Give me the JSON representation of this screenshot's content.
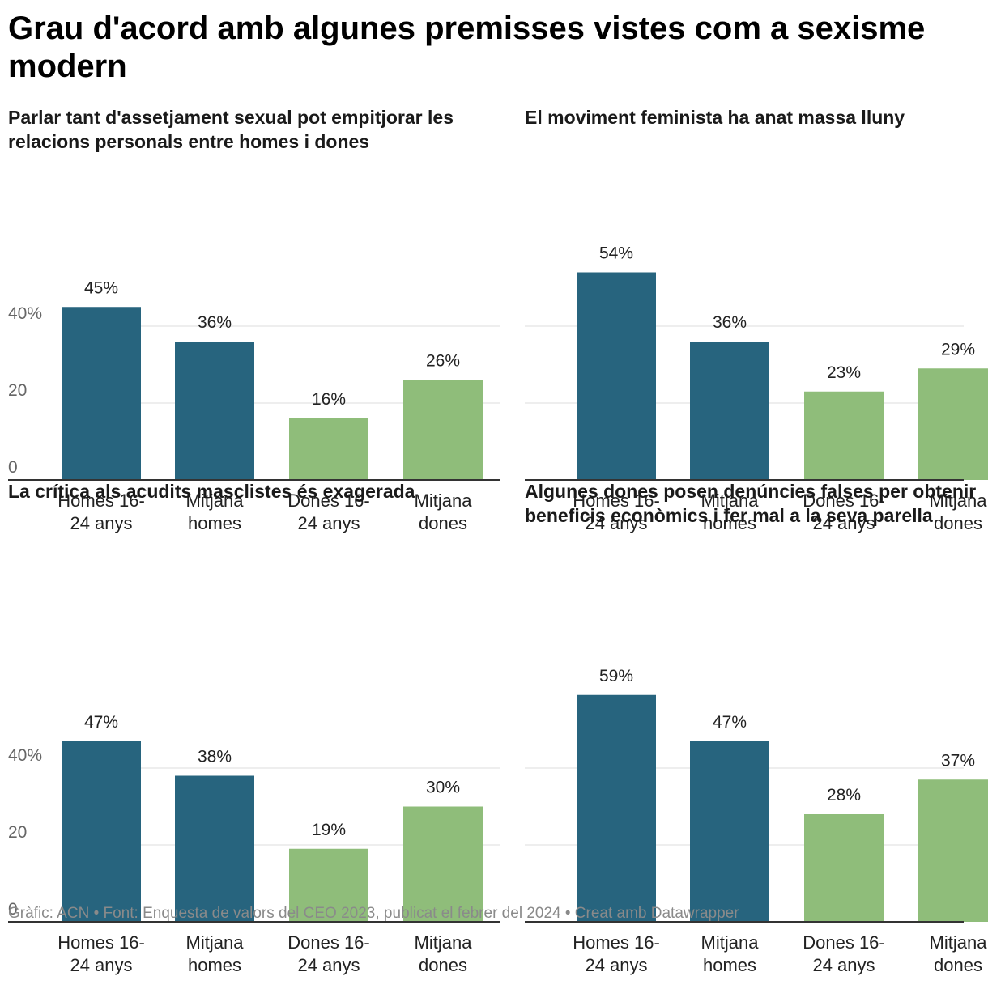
{
  "title": "Grau d'acord amb algunes premisses vistes com a sexisme modern",
  "footer": "Gràfic: ACN • Font: Enquesta de valors del CEO 2023, publicat el febrer del 2024 • Creat amb Datawrapper",
  "colors": {
    "homes": "#27647e",
    "dones": "#8fbd7a",
    "grid": "#dddddd",
    "axis": "#333333",
    "tick_text": "#666666"
  },
  "chart_data": [
    {
      "type": "bar",
      "title": "Parlar tant d'assetjament sexual pot empitjorar les relacions personals entre homes i dones",
      "categories": [
        "Homes 16-24 anys",
        "Mitjana homes",
        "Dones 16-24 anys",
        "Mitjana dones"
      ],
      "category_lines": [
        [
          "Homes 16-",
          "24 anys"
        ],
        [
          "Mitjana",
          "homes"
        ],
        [
          "Dones 16-",
          "24 anys"
        ],
        [
          "Mitjana",
          "dones"
        ]
      ],
      "values": [
        45,
        36,
        16,
        26
      ],
      "data_labels": [
        "45%",
        "36%",
        "16%",
        "26%"
      ],
      "groups": [
        "homes",
        "homes",
        "dones",
        "dones"
      ],
      "yticks": [
        0,
        20,
        40
      ],
      "ytick_labels": [
        "0",
        "20",
        "40%"
      ],
      "ylim": [
        0,
        40
      ]
    },
    {
      "type": "bar",
      "title": "El moviment feminista ha anat massa lluny",
      "categories": [
        "Homes 16-24 anys",
        "Mitjana homes",
        "Dones 16-24 anys",
        "Mitjana dones"
      ],
      "category_lines": [
        [
          "Homes 16-",
          "24 anys"
        ],
        [
          "Mitjana",
          "homes"
        ],
        [
          "Dones 16-",
          "24 anys"
        ],
        [
          "Mitjana",
          "dones"
        ]
      ],
      "values": [
        54,
        36,
        23,
        29
      ],
      "data_labels": [
        "54%",
        "36%",
        "23%",
        "29%"
      ],
      "groups": [
        "homes",
        "homes",
        "dones",
        "dones"
      ],
      "yticks": [
        0,
        20,
        40
      ],
      "ytick_labels": [
        "",
        "",
        ""
      ],
      "ylim": [
        0,
        40
      ]
    },
    {
      "type": "bar",
      "title": "La crítica als acudits masclistes és exagerada",
      "categories": [
        "Homes 16-24 anys",
        "Mitjana homes",
        "Dones 16-24 anys",
        "Mitjana dones"
      ],
      "category_lines": [
        [
          "Homes 16-",
          "24 anys"
        ],
        [
          "Mitjana",
          "homes"
        ],
        [
          "Dones 16-",
          "24 anys"
        ],
        [
          "Mitjana",
          "dones"
        ]
      ],
      "values": [
        47,
        38,
        19,
        30
      ],
      "data_labels": [
        "47%",
        "38%",
        "19%",
        "30%"
      ],
      "groups": [
        "homes",
        "homes",
        "dones",
        "dones"
      ],
      "yticks": [
        0,
        20,
        40
      ],
      "ytick_labels": [
        "0",
        "20",
        "40%"
      ],
      "ylim": [
        0,
        40
      ]
    },
    {
      "type": "bar",
      "title": "Algunes dones posen denúncies falses per obtenir beneficis econòmics i fer mal a la seva parella",
      "categories": [
        "Homes 16-24 anys",
        "Mitjana homes",
        "Dones 16-24 anys",
        "Mitjana dones"
      ],
      "category_lines": [
        [
          "Homes 16-",
          "24 anys"
        ],
        [
          "Mitjana",
          "homes"
        ],
        [
          "Dones 16-",
          "24 anys"
        ],
        [
          "Mitjana",
          "dones"
        ]
      ],
      "values": [
        59,
        47,
        28,
        37
      ],
      "data_labels": [
        "59%",
        "47%",
        "28%",
        "37%"
      ],
      "groups": [
        "homes",
        "homes",
        "dones",
        "dones"
      ],
      "yticks": [
        0,
        20,
        40
      ],
      "ytick_labels": [
        "",
        "",
        ""
      ],
      "ylim": [
        0,
        40
      ]
    }
  ]
}
